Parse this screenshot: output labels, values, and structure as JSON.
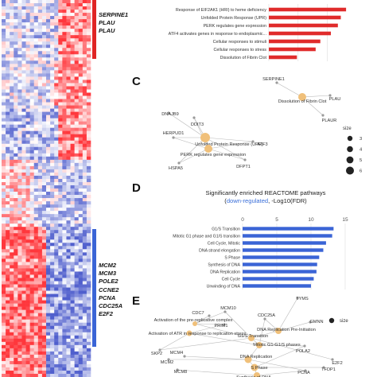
{
  "colors": {
    "heat_high": "#e8394e",
    "heat_low": "#5566cc",
    "up_bar": "#e02b2b",
    "down_bar": "#3a64d6",
    "node": "#f0c07a",
    "edge": "#b8b8b8",
    "term_text": "#333333"
  },
  "up_genes": [
    "SERPINE1",
    "PLAU",
    "PLAU"
  ],
  "down_genes": [
    "MCM2",
    "MCM3",
    "POLE2",
    "CCNE2",
    "PCNA",
    "CDC25A",
    "E2F2"
  ],
  "panels": {
    "c": "C",
    "d": "D",
    "e": "E"
  },
  "chart_data": [
    {
      "type": "bar",
      "orientation": "horizontal",
      "categories": [
        "Response of EIF2AK1 (HRI) to heme deficiency",
        "Unfolded Protein Response (UPR)",
        "PERK regulates gene expression",
        "ATF4 activates genes in response to endoplasmic...",
        "Cellular responses to stimuli",
        "Cellular responses to stress",
        "Dissolution of Fibrin Clot"
      ],
      "values": [
        13.2,
        12.3,
        11.8,
        10.6,
        8.8,
        8.0,
        4.8
      ],
      "xlim": [
        0,
        14
      ],
      "grid": true,
      "title": ""
    },
    {
      "type": "bar",
      "orientation": "horizontal",
      "title_line1": "Significantly enriched REACTOME pathways",
      "title_hl": "down-regulated",
      "title_rest": ", -Log10(FDR)",
      "title_open": "(",
      "categories": [
        "G1/S Transition",
        "Mitotic G1 phase and G1/S transition",
        "Cell Cycle, Mitotic",
        "DNA strand elongation",
        "S Phase",
        "Synthesis of DNA",
        "DNA Replication",
        "Cell Cycle",
        "Unwinding of DNA"
      ],
      "values": [
        13.3,
        13.1,
        12.2,
        11.8,
        11.2,
        10.9,
        10.8,
        10.4,
        10.0
      ],
      "xticks": [
        0,
        5,
        10,
        15
      ],
      "xlim": [
        0,
        15
      ],
      "grid": true
    }
  ],
  "network_c": {
    "terms": [
      "Dissolution of Fibrin Clot",
      "Unfolded Protein Response (UPR)",
      "PERK regulates gene expression"
    ],
    "genes": [
      "SERPINE1",
      "PLAU",
      "PLAUR",
      "DNAJB9",
      "DDIT3",
      "HERPUD1",
      "ATF3",
      "HSPA5",
      "DFPT1"
    ],
    "legend_title": "size",
    "legend_values": [
      "3",
      "4",
      "5",
      "6"
    ]
  },
  "network_e": {
    "terms": [
      "Activation of the pre-replicative complex",
      "Activation of ATR in response to replication stress",
      "DNA Replication Pre-Initiation",
      "G1/S Transition",
      "Mitotic G1-G1/S phases",
      "DNA Replication",
      "S Phase",
      "Synthesis of DNA"
    ],
    "genes": [
      "TYMS",
      "CDC7",
      "MCM10",
      "CDC25A",
      "GMNN",
      "PRIM1",
      "E2F2",
      "SKP2",
      "MCM4",
      "POLA2",
      "MCM2",
      "TFDP1",
      "PCNA",
      "MCM8"
    ],
    "legend_title": "size"
  }
}
